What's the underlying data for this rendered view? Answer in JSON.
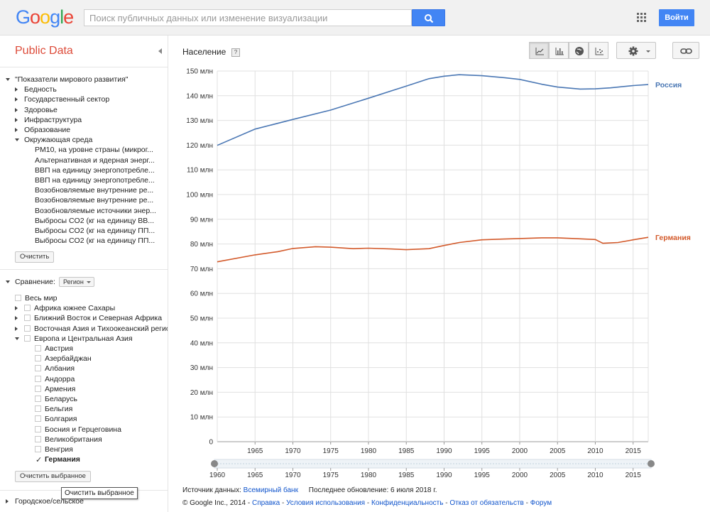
{
  "header": {
    "logo_letters": [
      {
        "ch": "G",
        "color": "#4285f4"
      },
      {
        "ch": "o",
        "color": "#ea4335"
      },
      {
        "ch": "o",
        "color": "#fbbc05"
      },
      {
        "ch": "g",
        "color": "#4285f4"
      },
      {
        "ch": "l",
        "color": "#34a853"
      },
      {
        "ch": "e",
        "color": "#ea4335"
      }
    ],
    "search_placeholder": "Поиск публичных данных или изменение визуализации",
    "search_icon": "magnifier-icon",
    "apps_icon": "apps-grid-icon",
    "login_label": "Войти"
  },
  "sidebar": {
    "title": "Public Data",
    "indicators_root": "\"Показатели мирового развития\"",
    "categories": [
      "Бедность",
      "Государственный сектор",
      "Здоровье",
      "Инфраструктура",
      "Образование"
    ],
    "expanded_category": "Окружающая среда",
    "sub_items": [
      "PM10, на уровне страны (микрог...",
      "Альтернативная и ядерная энерг...",
      "ВВП на единицу энергопотребле...",
      "ВВП на единицу энергопотребле...",
      "Возобновляемые внутренние ре...",
      "Возобновляемые внутренние ре...",
      "Возобновляемые источники энер...",
      "Выбросы CO2 (кг на единицу ВВ...",
      "Выбросы CO2 (кг на единицу ПП...",
      "Выбросы CO2 (кг на единицу ПП..."
    ],
    "clear_label": "Очистить",
    "compare_label": "Сравнение:",
    "compare_dropdown": "Регион",
    "world": "Весь мир",
    "regions": [
      "Африка южнее Сахары",
      "Ближний Восток и Северная Африка",
      "Восточная Азия и Тихоокеанский регион"
    ],
    "expanded_region": "Европа и Центральная Азия",
    "countries": [
      {
        "name": "Австрия",
        "checked": false
      },
      {
        "name": "Азербайджан",
        "checked": false
      },
      {
        "name": "Албания",
        "checked": false
      },
      {
        "name": "Андорра",
        "checked": false
      },
      {
        "name": "Армения",
        "checked": false
      },
      {
        "name": "Беларусь",
        "checked": false
      },
      {
        "name": "Бельгия",
        "checked": false
      },
      {
        "name": "Болгария",
        "checked": false
      },
      {
        "name": "Босния и Герцеговина",
        "checked": false
      },
      {
        "name": "Великобритания",
        "checked": false
      },
      {
        "name": "Венгрия",
        "checked": false
      },
      {
        "name": "Германия",
        "checked": true
      }
    ],
    "clear_selected_label": "Очистить выбранное",
    "tooltip": "Очистить выбранное",
    "urban_rural": "Городское/сельское"
  },
  "main": {
    "chart_title": "Население",
    "help_badge": "?",
    "view_buttons": [
      "line-chart-icon",
      "bar-chart-icon",
      "globe-icon",
      "scatter-chart-icon"
    ],
    "settings_icon": "gear-icon",
    "link_icon": "link-icon"
  },
  "chart_data": {
    "type": "line",
    "title": "Население",
    "ylabel": "",
    "xlabel": "",
    "ylim": [
      0,
      150
    ],
    "y_ticks": [
      0,
      10,
      20,
      30,
      40,
      50,
      60,
      70,
      80,
      90,
      100,
      110,
      120,
      130,
      140,
      150
    ],
    "y_tick_labels": [
      "0",
      "10 млн",
      "20 млн",
      "30 млн",
      "40 млн",
      "50 млн",
      "60 млн",
      "70 млн",
      "80 млн",
      "90 млн",
      "100 млн",
      "110 млн",
      "120 млн",
      "130 млн",
      "140 млн",
      "150 млн"
    ],
    "xlim": [
      1960,
      2017
    ],
    "x_ticks": [
      1965,
      1970,
      1975,
      1980,
      1985,
      1990,
      1995,
      2000,
      2005,
      2010,
      2015
    ],
    "timeline_ticks": [
      1960,
      1965,
      1970,
      1975,
      1980,
      1985,
      1990,
      1995,
      2000,
      2005,
      2010,
      2015
    ],
    "grid": true,
    "legend": "right-end-labels",
    "series": [
      {
        "name": "Россия",
        "color": "#4a77b4",
        "x": [
          1960,
          1965,
          1970,
          1975,
          1980,
          1985,
          1988,
          1990,
          1992,
          1995,
          1998,
          2000,
          2003,
          2005,
          2008,
          2010,
          2012,
          2015,
          2017
        ],
        "y": [
          119.9,
          126.5,
          130.4,
          134.2,
          139.0,
          143.9,
          146.9,
          147.9,
          148.5,
          148.1,
          147.3,
          146.6,
          144.6,
          143.5,
          142.7,
          142.8,
          143.2,
          144.1,
          144.5
        ]
      },
      {
        "name": "Германия",
        "color": "#d35a2b",
        "x": [
          1960,
          1965,
          1968,
          1970,
          1973,
          1975,
          1978,
          1980,
          1983,
          1985,
          1988,
          1990,
          1992,
          1995,
          1998,
          2000,
          2003,
          2005,
          2008,
          2010,
          2011,
          2013,
          2015,
          2017
        ],
        "y": [
          72.8,
          75.6,
          76.9,
          78.2,
          78.9,
          78.7,
          78.1,
          78.3,
          78.0,
          77.7,
          78.1,
          79.4,
          80.6,
          81.7,
          82.0,
          82.2,
          82.5,
          82.5,
          82.1,
          81.8,
          80.3,
          80.6,
          81.7,
          82.7
        ]
      }
    ]
  },
  "footer": {
    "source_label": "Источник данных:",
    "source_link": "Всемирный банк",
    "updated": "Последнее обновление: 6 июля 2018 г.",
    "copyright": "© Google Inc., 2014 -",
    "links": [
      "Справка",
      "Условия использования",
      "Конфиденциальность",
      "Отказ от обязательств",
      "Форум"
    ]
  }
}
